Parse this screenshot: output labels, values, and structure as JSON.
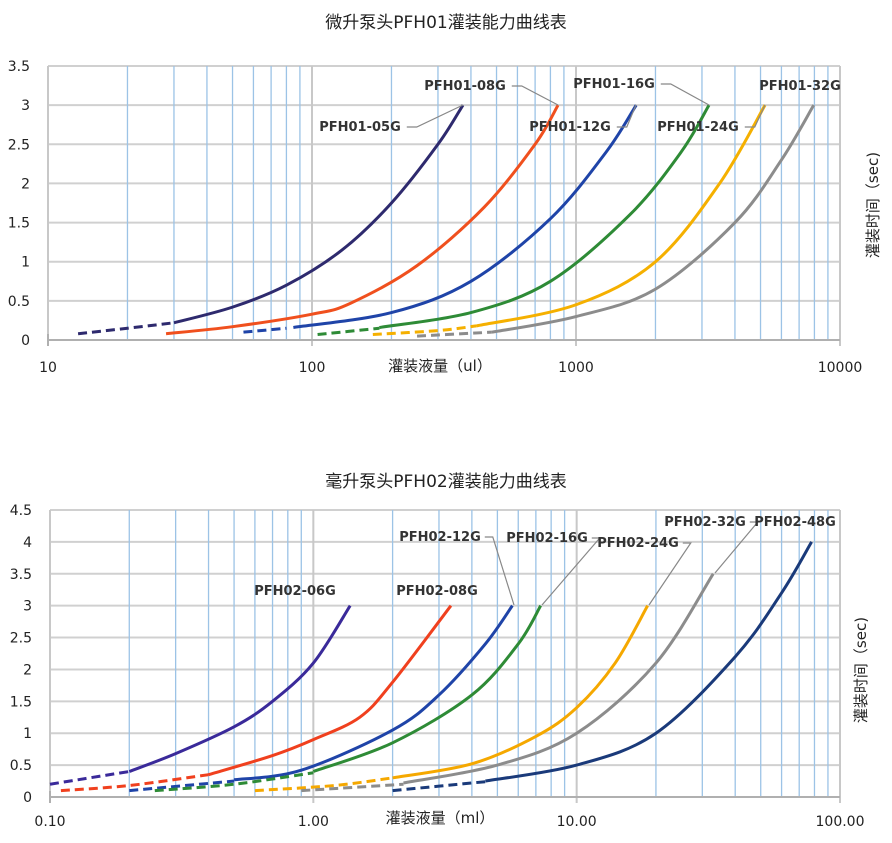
{
  "chart_data": [
    {
      "type": "line",
      "title": "微升泵头PFH01灌装能力曲线表",
      "xlabel": "灌装液量（ul）",
      "ylabel": "灌装时间（sec)",
      "xscale": "log",
      "xlim": [
        10,
        10000
      ],
      "ylim": [
        0,
        3.5
      ],
      "xticks": [
        "10",
        "100",
        "1000",
        "10000"
      ],
      "yticks": [
        "0",
        "0.5",
        "1",
        "1.5",
        "2",
        "2.5",
        "3",
        "3.5"
      ],
      "grid": true,
      "series": [
        {
          "name": "PFH01-05G",
          "color": "#2e2a6e",
          "dashed": [
            [
              13,
              0.08
            ],
            [
              20,
              0.15
            ],
            [
              30,
              0.22
            ]
          ],
          "solid": [
            [
              30,
              0.22
            ],
            [
              50,
              0.42
            ],
            [
              80,
              0.7
            ],
            [
              130,
              1.15
            ],
            [
              200,
              1.75
            ],
            [
              300,
              2.5
            ],
            [
              373,
              3.0
            ]
          ]
        },
        {
          "name": "PFH01-08G",
          "color": "#f0501e",
          "dashed": [],
          "solid": [
            [
              28,
              0.08
            ],
            [
              50,
              0.17
            ],
            [
              100,
              0.33
            ],
            [
              140,
              0.47
            ],
            [
              250,
              0.95
            ],
            [
              450,
              1.7
            ],
            [
              700,
              2.5
            ],
            [
              855,
              3.0
            ]
          ]
        },
        {
          "name": "PFH01-12G",
          "color": "#1f44a8",
          "dashed": [
            [
              55,
              0.1
            ],
            [
              80,
              0.15
            ]
          ],
          "solid": [
            [
              85,
              0.16
            ],
            [
              200,
              0.35
            ],
            [
              400,
              0.75
            ],
            [
              800,
              1.55
            ],
            [
              1300,
              2.4
            ],
            [
              1690,
              3.0
            ]
          ]
        },
        {
          "name": "PFH01-16G",
          "color": "#2e8b36",
          "dashed": [
            [
              105,
              0.07
            ],
            [
              180,
              0.15
            ]
          ],
          "solid": [
            [
              180,
              0.16
            ],
            [
              400,
              0.35
            ],
            [
              800,
              0.75
            ],
            [
              1600,
              1.6
            ],
            [
              2500,
              2.4
            ],
            [
              3190,
              3.0
            ]
          ]
        },
        {
          "name": "PFH01-24G",
          "color": "#f5b000",
          "dashed": [
            [
              170,
              0.07
            ],
            [
              300,
              0.12
            ],
            [
              420,
              0.18
            ]
          ],
          "solid": [
            [
              420,
              0.18
            ],
            [
              1000,
              0.45
            ],
            [
              2000,
              1.0
            ],
            [
              3500,
              2.0
            ],
            [
              5200,
              3.0
            ]
          ]
        },
        {
          "name": "PFH01-32G",
          "color": "#8c8c8c",
          "dashed": [
            [
              250,
              0.05
            ],
            [
              480,
              0.1
            ]
          ],
          "solid": [
            [
              480,
              0.1
            ],
            [
              1000,
              0.3
            ],
            [
              2000,
              0.65
            ],
            [
              4000,
              1.5
            ],
            [
              6000,
              2.3
            ],
            [
              7950,
              3.0
            ]
          ]
        }
      ]
    },
    {
      "type": "line",
      "title": "毫升泵头PFH02灌装能力曲线表",
      "xlabel": "灌装液量（ml）",
      "ylabel": "灌装时间（sec)",
      "xscale": "log",
      "xlim": [
        0.1,
        100
      ],
      "ylim": [
        0,
        4.5
      ],
      "xticks": [
        "0.10",
        "1.00",
        "10.00",
        "100.00"
      ],
      "yticks": [
        "0",
        "0.5",
        "1",
        "1.5",
        "2",
        "2.5",
        "3",
        "3.5",
        "4",
        "4.5"
      ],
      "grid": true,
      "series": [
        {
          "name": "PFH02-06G",
          "color": "#3a2a9a",
          "dashed": [
            [
              0.1,
              0.2
            ],
            [
              0.2,
              0.4
            ]
          ],
          "solid": [
            [
              0.2,
              0.4
            ],
            [
              0.3,
              0.68
            ],
            [
              0.5,
              1.1
            ],
            [
              0.7,
              1.5
            ],
            [
              1.0,
              2.1
            ],
            [
              1.38,
              3.0
            ]
          ]
        },
        {
          "name": "PFH02-08G",
          "color": "#f0401e",
          "dashed": [
            [
              0.11,
              0.1
            ],
            [
              0.2,
              0.18
            ],
            [
              0.4,
              0.35
            ]
          ],
          "solid": [
            [
              0.4,
              0.35
            ],
            [
              0.7,
              0.65
            ],
            [
              1.0,
              0.9
            ],
            [
              1.5,
              1.25
            ],
            [
              2.0,
              1.8
            ],
            [
              3.33,
              3.0
            ]
          ]
        },
        {
          "name": "PFH02-12G",
          "color": "#1f44a8",
          "dashed": [
            [
              0.2,
              0.1
            ],
            [
              0.5,
              0.25
            ]
          ],
          "solid": [
            [
              0.5,
              0.27
            ],
            [
              0.9,
              0.42
            ],
            [
              2.0,
              1.05
            ],
            [
              3.0,
              1.6
            ],
            [
              4.5,
              2.4
            ],
            [
              5.7,
              3.0
            ]
          ]
        },
        {
          "name": "PFH02-16G",
          "color": "#2e8b36",
          "dashed": [
            [
              0.25,
              0.1
            ],
            [
              0.5,
              0.2
            ],
            [
              1.0,
              0.38
            ]
          ],
          "solid": [
            [
              1.0,
              0.4
            ],
            [
              2.0,
              0.85
            ],
            [
              4.0,
              1.6
            ],
            [
              6.0,
              2.4
            ],
            [
              7.3,
              3.0
            ]
          ]
        },
        {
          "name": "PFH02-24G",
          "color": "#f5a800",
          "dashed": [
            [
              0.6,
              0.1
            ],
            [
              1.2,
              0.18
            ],
            [
              2.0,
              0.3
            ]
          ],
          "solid": [
            [
              2.0,
              0.3
            ],
            [
              4.0,
              0.52
            ],
            [
              7.0,
              0.95
            ],
            [
              10,
              1.4
            ],
            [
              14,
              2.1
            ],
            [
              18.6,
              3.0
            ]
          ]
        },
        {
          "name": "PFH02-32G",
          "color": "#8c8c8c",
          "dashed": [
            [
              0.9,
              0.1
            ],
            [
              2.2,
              0.2
            ]
          ],
          "solid": [
            [
              2.2,
              0.22
            ],
            [
              5.0,
              0.5
            ],
            [
              10,
              1.0
            ],
            [
              20,
              2.1
            ],
            [
              33,
              3.5
            ]
          ]
        },
        {
          "name": "PFH02-48G",
          "color": "#1a3a7a",
          "dashed": [
            [
              2.0,
              0.1
            ],
            [
              4.5,
              0.24
            ]
          ],
          "solid": [
            [
              4.5,
              0.25
            ],
            [
              10,
              0.5
            ],
            [
              20,
              1.0
            ],
            [
              40,
              2.2
            ],
            [
              60,
              3.2
            ],
            [
              78,
              4.0
            ]
          ]
        }
      ]
    }
  ]
}
